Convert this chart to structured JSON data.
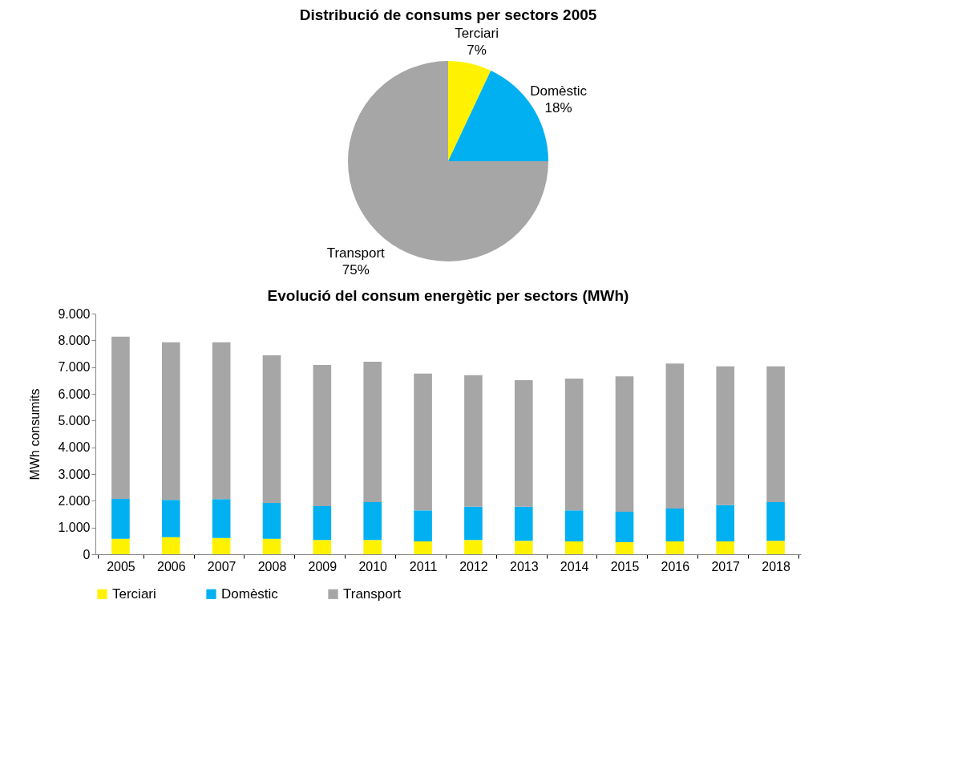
{
  "chart_data": [
    {
      "type": "pie",
      "title": "Distribució de consums per sectors 2005",
      "categories": [
        "Terciari",
        "Domèstic",
        "Transport"
      ],
      "values": [
        7,
        18,
        75
      ],
      "value_labels": [
        "7%",
        "18%",
        "75%"
      ],
      "colors": [
        "#fff200",
        "#00b0f0",
        "#a6a6a6"
      ]
    },
    {
      "type": "bar",
      "title": "Evolució del consum energètic per sectors (MWh)",
      "ylabel": "MWh consumits",
      "stacked": true,
      "legend": "bottom",
      "categories": [
        "2005",
        "2006",
        "2007",
        "2008",
        "2009",
        "2010",
        "2011",
        "2012",
        "2013",
        "2014",
        "2015",
        "2016",
        "2017",
        "2018"
      ],
      "series": [
        {
          "name": "Terciari",
          "color": "#fff200",
          "values": [
            580,
            640,
            610,
            580,
            530,
            530,
            480,
            530,
            500,
            480,
            450,
            480,
            480,
            500
          ]
        },
        {
          "name": "Domèstic",
          "color": "#00b0f0",
          "values": [
            1490,
            1390,
            1450,
            1340,
            1270,
            1420,
            1160,
            1250,
            1280,
            1160,
            1140,
            1230,
            1360,
            1450
          ]
        },
        {
          "name": "Transport",
          "color": "#a6a6a6",
          "values": [
            6070,
            5900,
            5870,
            5520,
            5280,
            5250,
            5120,
            4920,
            4730,
            4930,
            5060,
            5420,
            5190,
            5080
          ]
        }
      ],
      "ylim": [
        0,
        9000
      ],
      "yticks": [
        {
          "value": 0,
          "label": "0"
        },
        {
          "value": 1000,
          "label": "1.000"
        },
        {
          "value": 2000,
          "label": "2.000"
        },
        {
          "value": 3000,
          "label": "3.000"
        },
        {
          "value": 4000,
          "label": "4.000"
        },
        {
          "value": 5000,
          "label": "5.000"
        },
        {
          "value": 6000,
          "label": "6.000"
        },
        {
          "value": 7000,
          "label": "7.000"
        },
        {
          "value": 8000,
          "label": "8.000"
        },
        {
          "value": 9000,
          "label": "9.000"
        }
      ]
    }
  ]
}
